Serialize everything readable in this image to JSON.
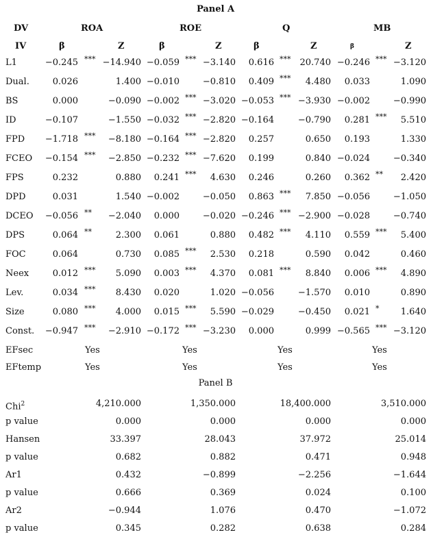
{
  "panel_a_title": "Panel A",
  "panel_b_title": "Panel B",
  "header": {
    "dv_label": "DV",
    "iv_label": "IV",
    "groups": [
      "ROA",
      "ROE",
      "Q",
      "MB"
    ],
    "beta": "β",
    "z": "Z"
  },
  "rows": [
    {
      "label": "L1",
      "v": [
        [
          "-0.245",
          "***",
          "-14.940"
        ],
        [
          "-0.059",
          "***",
          "-3.140"
        ],
        [
          "0.616",
          "***",
          "20.740"
        ],
        [
          "-0.246",
          "***",
          "-3.120"
        ]
      ]
    },
    {
      "label": "Dual.",
      "v": [
        [
          "0.026",
          "",
          "1.400"
        ],
        [
          "-0.010",
          "",
          "-0.810"
        ],
        [
          "0.409",
          "***",
          "4.480"
        ],
        [
          "0.033",
          "",
          "1.090"
        ]
      ]
    },
    {
      "label": "BS",
      "v": [
        [
          "0.000",
          "",
          "-0.090"
        ],
        [
          "-0.002",
          "***",
          "-3.020"
        ],
        [
          "-0.053",
          "***",
          "-3.930"
        ],
        [
          "-0.002",
          "",
          "-0.990"
        ]
      ]
    },
    {
      "label": "ID",
      "v": [
        [
          "-0.107",
          "",
          "-1.550"
        ],
        [
          "-0.032",
          "***",
          "-2.820"
        ],
        [
          "-0.164",
          "",
          "-0.790"
        ],
        [
          "0.281",
          "***",
          "5.510"
        ]
      ]
    },
    {
      "label": "FPD",
      "v": [
        [
          "-1.718",
          "***",
          "-8.180"
        ],
        [
          "-0.164",
          "***",
          "-2.820"
        ],
        [
          "0.257",
          "",
          "0.650"
        ],
        [
          "0.193",
          "",
          "1.330"
        ]
      ]
    },
    {
      "label": "FCEO",
      "v": [
        [
          "-0.154",
          "***",
          "-2.850"
        ],
        [
          "-0.232",
          "***",
          "-7.620"
        ],
        [
          "0.199",
          "",
          "0.840"
        ],
        [
          "-0.024",
          "",
          "-0.340"
        ]
      ]
    },
    {
      "label": "FPS",
      "v": [
        [
          "0.232",
          "",
          "0.880"
        ],
        [
          "0.241",
          "***",
          "4.630"
        ],
        [
          "0.246",
          "",
          "0.260"
        ],
        [
          "0.362",
          "**",
          "2.420"
        ]
      ]
    },
    {
      "label": "DPD",
      "v": [
        [
          "0.031",
          "",
          "1.540"
        ],
        [
          "-0.002",
          "",
          "-0.050"
        ],
        [
          "0.863",
          "***",
          "7.850"
        ],
        [
          "-0.056",
          "",
          "-1.050"
        ]
      ]
    },
    {
      "label": "DCEO",
      "v": [
        [
          "-0.056",
          "**",
          "-2.040"
        ],
        [
          "0.000",
          "",
          "-0.020"
        ],
        [
          "-0.246",
          "***",
          "-2.900"
        ],
        [
          "-0.028",
          "",
          "-0.740"
        ]
      ]
    },
    {
      "label": "DPS",
      "v": [
        [
          "0.064",
          "**",
          "2.300"
        ],
        [
          "0.061",
          "",
          "0.880"
        ],
        [
          "0.482",
          "***",
          "4.110"
        ],
        [
          "0.559",
          "***",
          "5.400"
        ]
      ]
    },
    {
      "label": "FOC",
      "v": [
        [
          "0.064",
          "",
          "0.730"
        ],
        [
          "0.085",
          "***",
          "2.530"
        ],
        [
          "0.218",
          "",
          "0.590"
        ],
        [
          "0.042",
          "",
          "0.460"
        ]
      ]
    },
    {
      "label": "Neex",
      "v": [
        [
          "0.012",
          "***",
          "5.090"
        ],
        [
          "0.003",
          "***",
          "4.370"
        ],
        [
          "0.081",
          "***",
          "8.840"
        ],
        [
          "0.006",
          "***",
          "4.890"
        ]
      ]
    },
    {
      "label": "Lev.",
      "v": [
        [
          "0.034",
          "***",
          "8.430"
        ],
        [
          "0.020",
          "",
          "1.020"
        ],
        [
          "-0.056",
          "",
          "-1.570"
        ],
        [
          "0.010",
          "",
          "0.890"
        ]
      ]
    },
    {
      "label": "Size",
      "v": [
        [
          "0.080",
          "***",
          "4.000"
        ],
        [
          "0.015",
          "***",
          "5.590"
        ],
        [
          "-0.029",
          "",
          "-0.450"
        ],
        [
          "0.021",
          "*",
          "1.640"
        ]
      ]
    },
    {
      "label": "Const.",
      "v": [
        [
          "-0.947",
          "***",
          "-2.910"
        ],
        [
          "-0.172",
          "***",
          "-3.230"
        ],
        [
          "0.000",
          "",
          "0.999"
        ],
        [
          "-0.565",
          "***",
          "-3.120"
        ]
      ]
    }
  ],
  "effects": [
    {
      "label": "EFsec",
      "values": [
        "Yes",
        "Yes",
        "Yes",
        "Yes"
      ]
    },
    {
      "label": "EFtemp",
      "values": [
        "Yes",
        "Yes",
        "Yes",
        "Yes"
      ]
    }
  ],
  "panel_b": [
    {
      "label": "Chi",
      "sup": "2",
      "values": [
        "4,210.000",
        "1,350.000",
        "18,400.000",
        "3,510.000"
      ]
    },
    {
      "label": "p value",
      "values": [
        "0.000",
        "0.000",
        "0.000",
        "0.000"
      ]
    },
    {
      "label": "Hansen",
      "values": [
        "33.397",
        "28.043",
        "37.972",
        "25.014"
      ]
    },
    {
      "label": "p value",
      "values": [
        "0.682",
        "0.882",
        "0.471",
        "0.948"
      ]
    },
    {
      "label": "Ar1",
      "values": [
        "0.432",
        "-0.899",
        "-2.256",
        "-1.644"
      ]
    },
    {
      "label": "p value",
      "values": [
        "0.666",
        "0.369",
        "0.024",
        "0.100"
      ]
    },
    {
      "label": "Ar2",
      "values": [
        "-0.944",
        "1.076",
        "0.470",
        "-1.072"
      ]
    },
    {
      "label": "p value",
      "values": [
        "0.345",
        "0.282",
        "0.638",
        "0.284"
      ]
    }
  ]
}
